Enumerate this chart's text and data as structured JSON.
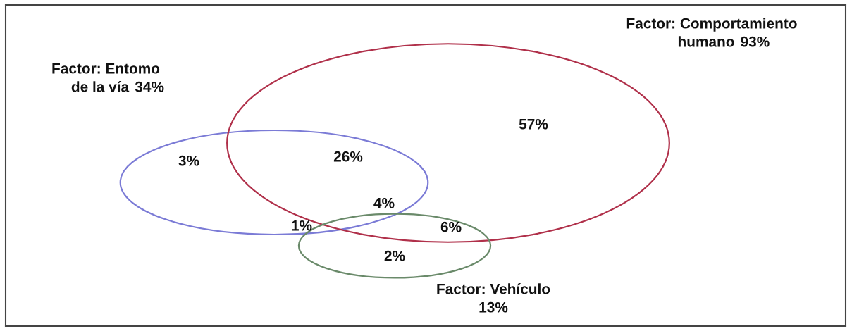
{
  "chart_data": {
    "type": "other",
    "categories": [
      "Factor: Entomo de la vía",
      "Factor: Comportamiento humano",
      "Factor: Vehículo"
    ],
    "values": [
      34,
      93,
      13
    ],
    "value_labels": [
      "34%",
      "93%",
      "13%"
    ],
    "colors": [
      "#7b7bd6",
      "#b0304a",
      "#6a8a6a"
    ],
    "annotations": [
      "3%",
      "57%",
      "2%",
      "26%",
      "1%",
      "6%",
      "4%"
    ]
  }
}
